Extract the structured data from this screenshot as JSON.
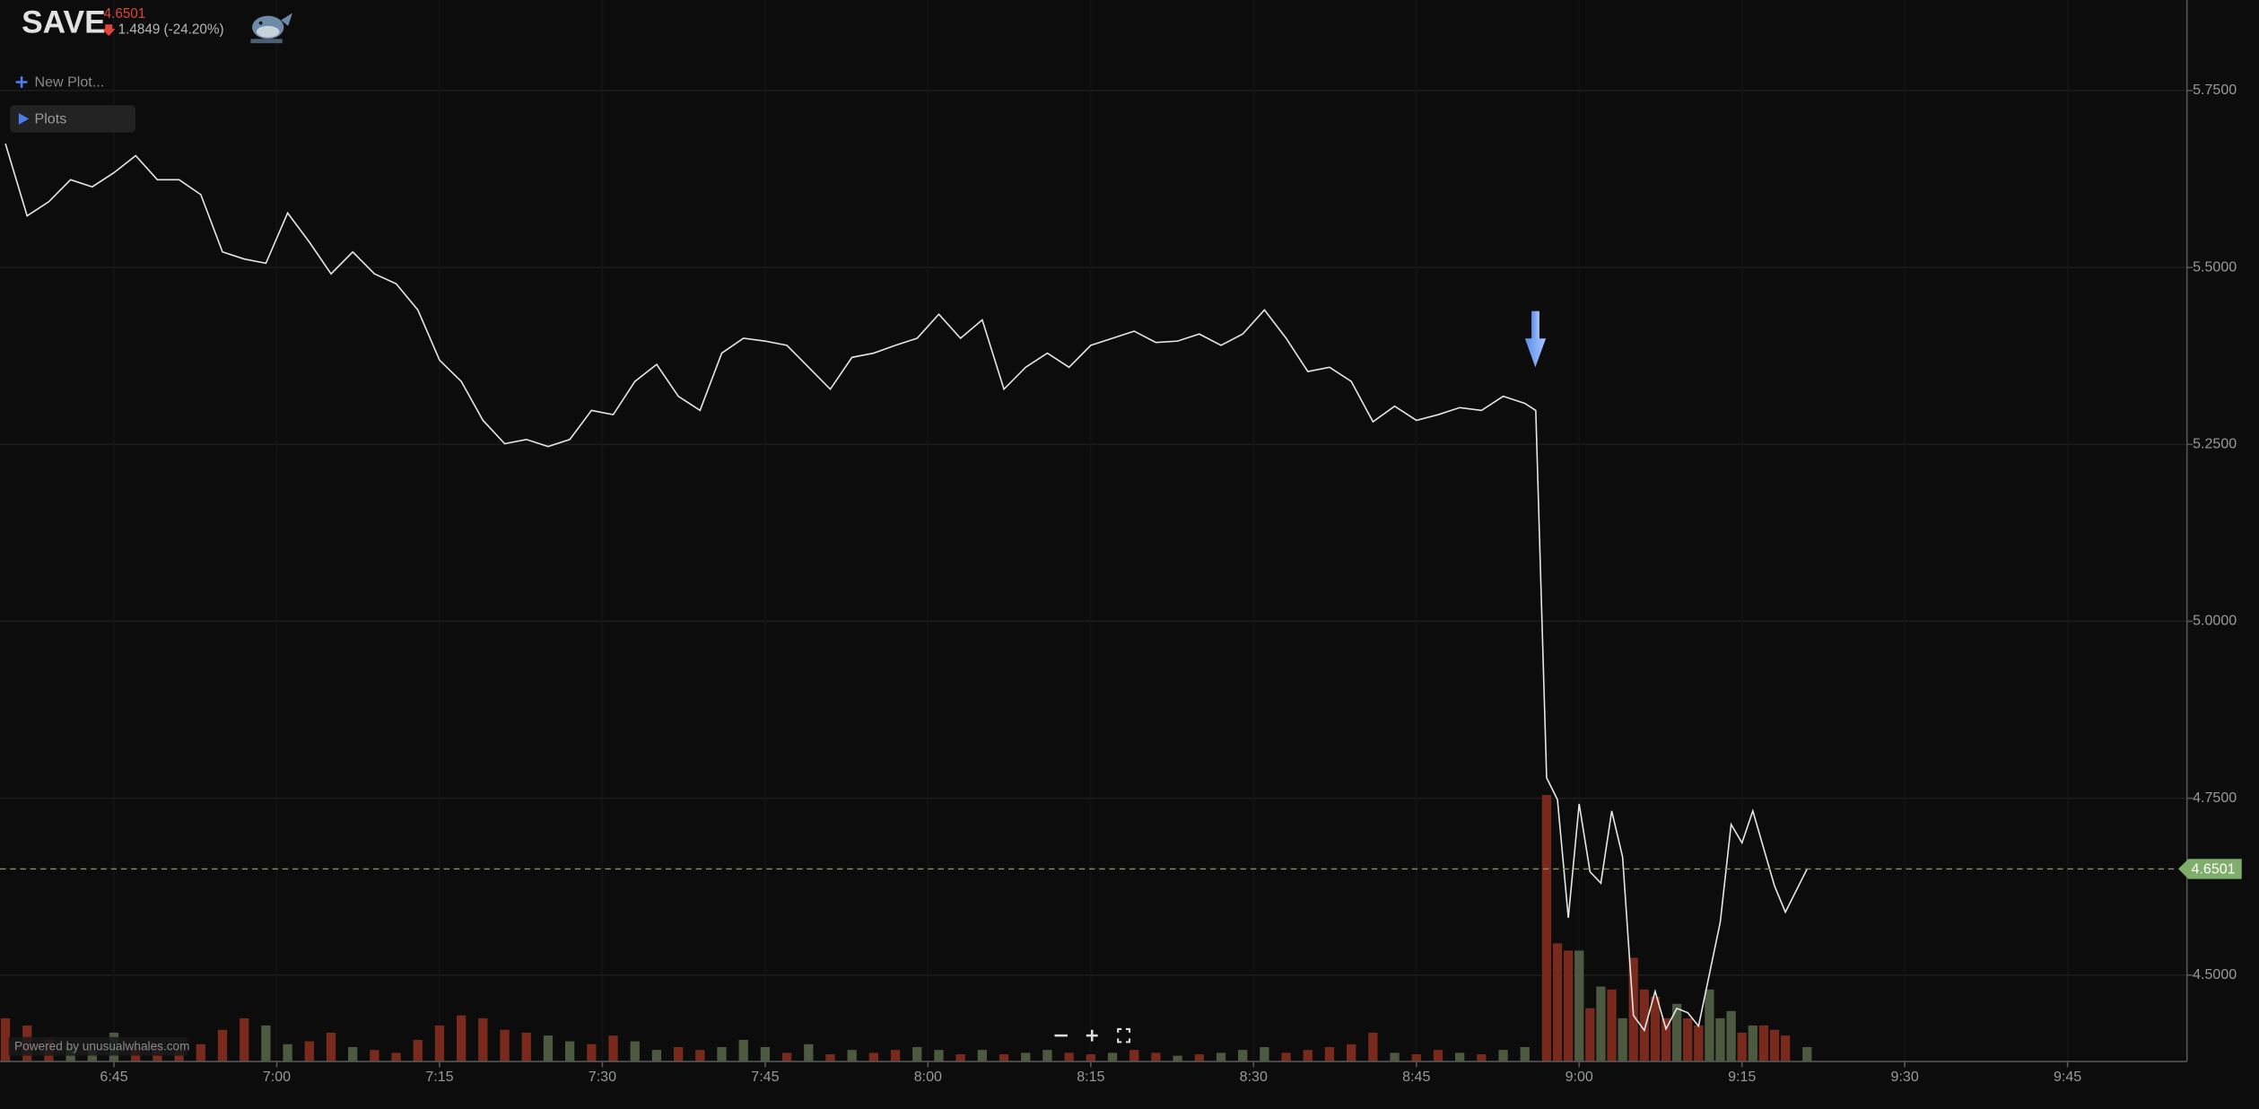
{
  "header": {
    "ticker": "SAVE",
    "price": "4.6501",
    "change": "1.4849 (-24.20%)"
  },
  "menu": {
    "new_plot": "New Plot...",
    "plots": "Plots"
  },
  "footer": "Powered by unusualwhales.com",
  "chart_data": {
    "type": "line",
    "color": "#e6e6e6",
    "grid": true,
    "x": [
      395,
      397,
      399,
      401,
      403,
      405,
      407,
      409,
      411,
      413,
      415,
      417,
      419,
      421,
      423,
      425,
      427,
      429,
      431,
      433,
      435,
      437,
      439,
      441,
      443,
      445,
      447,
      449,
      451,
      453,
      455,
      457,
      459,
      461,
      463,
      465,
      467,
      469,
      471,
      473,
      475,
      477,
      479,
      481,
      483,
      485,
      487,
      489,
      491,
      493,
      495,
      497,
      499,
      501,
      503,
      505,
      507,
      509,
      511,
      513,
      515,
      517,
      519,
      521,
      523,
      525,
      527,
      529,
      531,
      533,
      535,
      536,
      537,
      538,
      539,
      540,
      541,
      542,
      543,
      544,
      545,
      546,
      547,
      548,
      549,
      550,
      551,
      553,
      554,
      555,
      556,
      558,
      559,
      561
    ],
    "values": [
      5.675,
      5.573,
      5.593,
      5.624,
      5.614,
      5.634,
      5.658,
      5.624,
      5.624,
      5.603,
      5.522,
      5.512,
      5.506,
      5.577,
      5.536,
      5.491,
      5.522,
      5.491,
      5.477,
      5.44,
      5.369,
      5.339,
      5.284,
      5.251,
      5.257,
      5.247,
      5.257,
      5.298,
      5.292,
      5.339,
      5.363,
      5.318,
      5.298,
      5.379,
      5.4,
      5.396,
      5.39,
      5.359,
      5.328,
      5.373,
      5.379,
      5.39,
      5.4,
      5.434,
      5.4,
      5.426,
      5.328,
      5.359,
      5.379,
      5.359,
      5.39,
      5.4,
      5.41,
      5.394,
      5.396,
      5.406,
      5.39,
      5.406,
      5.44,
      5.4,
      5.353,
      5.359,
      5.339,
      5.282,
      5.304,
      5.284,
      5.292,
      5.302,
      5.298,
      5.318,
      5.308,
      5.298,
      4.779,
      4.748,
      4.581,
      4.742,
      4.646,
      4.63,
      4.732,
      4.667,
      4.443,
      4.422,
      4.477,
      4.424,
      4.453,
      4.447,
      4.428,
      4.575,
      4.713,
      4.687,
      4.732,
      4.626,
      4.589,
      4.6501
    ],
    "xlim": [
      394.5,
      596
    ],
    "xticks": [
      {
        "value": 405,
        "label": "6:45"
      },
      {
        "value": 420,
        "label": "7:00"
      },
      {
        "value": 435,
        "label": "7:15"
      },
      {
        "value": 450,
        "label": "7:30"
      },
      {
        "value": 465,
        "label": "7:45"
      },
      {
        "value": 480,
        "label": "8:00"
      },
      {
        "value": 495,
        "label": "8:15"
      },
      {
        "value": 510,
        "label": "8:30"
      },
      {
        "value": 525,
        "label": "8:45"
      },
      {
        "value": 540,
        "label": "9:00"
      },
      {
        "value": 555,
        "label": "9:15"
      },
      {
        "value": 570,
        "label": "9:30"
      },
      {
        "value": 585,
        "label": "9:45"
      }
    ],
    "ylim": [
      4.378,
      5.878
    ],
    "yticks": [
      {
        "value": 5.75,
        "label": "5.7500"
      },
      {
        "value": 5.5,
        "label": "5.5000"
      },
      {
        "value": 5.25,
        "label": "5.2500"
      },
      {
        "value": 5.0,
        "label": "5.0000"
      },
      {
        "value": 4.75,
        "label": "4.7500"
      },
      {
        "value": 4.5,
        "label": "4.5000"
      }
    ],
    "y2lim": [
      0,
      737
    ],
    "volume": {
      "axis": "y2",
      "x": [
        395,
        397,
        399,
        401,
        403,
        405,
        407,
        409,
        411,
        413,
        415,
        417,
        419,
        421,
        423,
        425,
        427,
        429,
        431,
        433,
        435,
        437,
        439,
        441,
        443,
        445,
        447,
        449,
        451,
        453,
        455,
        457,
        459,
        461,
        463,
        465,
        467,
        469,
        471,
        473,
        475,
        477,
        479,
        481,
        483,
        485,
        487,
        489,
        491,
        493,
        495,
        497,
        499,
        501,
        503,
        505,
        507,
        509,
        511,
        513,
        515,
        517,
        519,
        521,
        523,
        525,
        527,
        529,
        531,
        533,
        535,
        537,
        538,
        539,
        540,
        541,
        542,
        543,
        544,
        545,
        546,
        547,
        548,
        549,
        550,
        551,
        552,
        553,
        554,
        555,
        556,
        557,
        558,
        559,
        561
      ],
      "values": [
        30,
        25,
        15,
        10,
        8,
        20,
        10,
        12,
        8,
        12,
        22,
        30,
        25,
        12,
        14,
        20,
        10,
        8,
        6,
        15,
        25,
        32,
        30,
        22,
        20,
        18,
        14,
        12,
        18,
        14,
        8,
        10,
        8,
        10,
        15,
        10,
        6,
        12,
        5,
        8,
        6,
        8,
        10,
        8,
        5,
        8,
        5,
        6,
        8,
        6,
        5,
        6,
        8,
        6,
        4,
        5,
        6,
        8,
        10,
        6,
        8,
        10,
        12,
        20,
        6,
        5,
        8,
        6,
        5,
        8,
        10,
        185,
        82,
        77,
        77,
        37,
        52,
        50,
        30,
        72,
        50,
        45,
        30,
        40,
        30,
        25,
        50,
        30,
        35,
        20,
        25,
        25,
        22,
        18,
        10
      ],
      "colors": [
        "#7a2a1d",
        "#7a2a1d",
        "#7a2a1d",
        "#4e5a3f",
        "#4e5a3f",
        "#4e5a3f",
        "#7a2a1d",
        "#7a2a1d",
        "#7a2a1d",
        "#7a2a1d",
        "#7a2a1d",
        "#7a2a1d",
        "#4e5a3f",
        "#4e5a3f",
        "#7a2a1d",
        "#7a2a1d",
        "#4e5a3f",
        "#7a2a1d",
        "#7a2a1d",
        "#7a2a1d",
        "#7a2a1d",
        "#7a2a1d",
        "#7a2a1d",
        "#7a2a1d",
        "#7a2a1d",
        "#4e5a3f",
        "#4e5a3f",
        "#7a2a1d",
        "#7a2a1d",
        "#4e5a3f",
        "#4e5a3f",
        "#7a2a1d",
        "#7a2a1d",
        "#4e5a3f",
        "#4e5a3f",
        "#4e5a3f",
        "#7a2a1d",
        "#4e5a3f",
        "#7a2a1d",
        "#4e5a3f",
        "#7a2a1d",
        "#7a2a1d",
        "#4e5a3f",
        "#4e5a3f",
        "#7a2a1d",
        "#4e5a3f",
        "#7a2a1d",
        "#4e5a3f",
        "#4e5a3f",
        "#7a2a1d",
        "#7a2a1d",
        "#4e5a3f",
        "#7a2a1d",
        "#7a2a1d",
        "#4e5a3f",
        "#7a2a1d",
        "#4e5a3f",
        "#4e5a3f",
        "#4e5a3f",
        "#7a2a1d",
        "#7a2a1d",
        "#7a2a1d",
        "#7a2a1d",
        "#7a2a1d",
        "#4e5a3f",
        "#7a2a1d",
        "#7a2a1d",
        "#4e5a3f",
        "#7a2a1d",
        "#4e5a3f",
        "#4e5a3f",
        "#7a2a1d",
        "#7a2a1d",
        "#7a2a1d",
        "#4e5a3f",
        "#7a2a1d",
        "#4e5a3f",
        "#7a2a1d",
        "#4e5a3f",
        "#7a2a1d",
        "#7a2a1d",
        "#7a2a1d",
        "#7a2a1d",
        "#4e5a3f",
        "#7a2a1d",
        "#7a2a1d",
        "#4e5a3f",
        "#4e5a3f",
        "#4e5a3f",
        "#7a2a1d",
        "#4e5a3f",
        "#7a2a1d",
        "#7a2a1d",
        "#7a2a1d",
        "#4e5a3f"
      ]
    }
  }
}
